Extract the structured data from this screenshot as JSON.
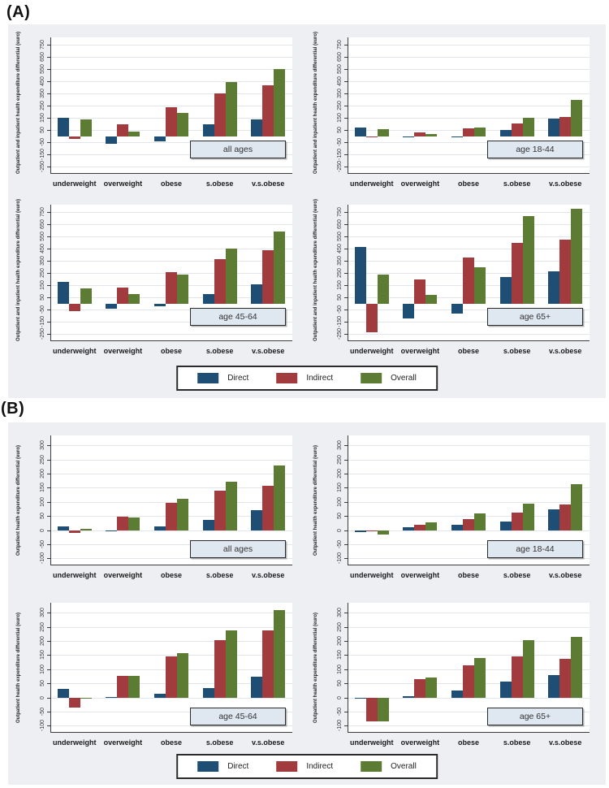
{
  "panel_labels": {
    "a": "(A)",
    "b": "(B)"
  },
  "legend": {
    "items": [
      {
        "label": "Direct",
        "color_key": "direct"
      },
      {
        "label": "Indirect",
        "color_key": "indirect"
      },
      {
        "label": "Overall",
        "color_key": "overall"
      }
    ],
    "position": "bottom-center"
  },
  "colors": {
    "direct": "#1f4e74",
    "indirect": "#a23b3e",
    "overall": "#5d7c33",
    "panel_bg": "#edeff3",
    "plot_bg": "#ffffff",
    "gridline": "#e2e5ea",
    "axis": "#3c3c3c",
    "age_box_bg": "#dfe7f0",
    "age_box_border": "#2b2b2b",
    "legend_border": "#2b2b2b"
  },
  "chart_data": [
    {
      "type": "bar",
      "panel": "A",
      "title": "all ages",
      "ylabel": "Outpatient and inpatient health expenditure differential (euro)",
      "categories": [
        "underweight",
        "overweight",
        "obese",
        "s.obese",
        "v.s.obese"
      ],
      "series": [
        {
          "name": "Direct",
          "values": [
            150,
            -60,
            -40,
            95,
            135
          ]
        },
        {
          "name": "Indirect",
          "values": [
            -20,
            100,
            240,
            350,
            415
          ]
        },
        {
          "name": "Overall",
          "values": [
            140,
            40,
            190,
            445,
            550
          ]
        }
      ],
      "ylim": [
        -310,
        810
      ],
      "yticks": [
        -250,
        -150,
        -50,
        50,
        150,
        250,
        350,
        450,
        550,
        650,
        750
      ],
      "grid": true,
      "legend_position": "bottom"
    },
    {
      "type": "bar",
      "panel": "A",
      "title": "age 18-44",
      "ylabel": "Outpatient and inpatient health expenditure differential (euro)",
      "categories": [
        "underweight",
        "overweight",
        "obese",
        "s.obese",
        "v.s.obese"
      ],
      "series": [
        {
          "name": "Direct",
          "values": [
            70,
            -12,
            -5,
            50,
            145
          ]
        },
        {
          "name": "Indirect",
          "values": [
            -10,
            30,
            65,
            105,
            155
          ]
        },
        {
          "name": "Overall",
          "values": [
            60,
            20,
            70,
            150,
            300
          ]
        }
      ],
      "ylim": [
        -310,
        810
      ],
      "yticks": [
        -250,
        -150,
        -50,
        50,
        150,
        250,
        350,
        450,
        550,
        650,
        750
      ],
      "grid": true,
      "legend_position": "bottom"
    },
    {
      "type": "bar",
      "panel": "A",
      "title": "age 45-64",
      "ylabel": "Outpatient and inpatient health expenditure differential (euro)",
      "categories": [
        "underweight",
        "overweight",
        "obese",
        "s.obese",
        "v.s.obese"
      ],
      "series": [
        {
          "name": "Direct",
          "values": [
            175,
            -45,
            -20,
            80,
            155
          ]
        },
        {
          "name": "Indirect",
          "values": [
            -60,
            130,
            255,
            365,
            440
          ]
        },
        {
          "name": "Overall",
          "values": [
            125,
            80,
            235,
            450,
            590
          ]
        }
      ],
      "ylim": [
        -310,
        810
      ],
      "yticks": [
        -250,
        -150,
        -50,
        50,
        150,
        250,
        350,
        450,
        550,
        650,
        750
      ],
      "grid": true,
      "legend_position": "bottom"
    },
    {
      "type": "bar",
      "panel": "A",
      "title": "age 65+",
      "ylabel": "Outpatient and inpatient health expenditure differential (euro)",
      "categories": [
        "underweight",
        "overweight",
        "obese",
        "s.obese",
        "v.s.obese"
      ],
      "series": [
        {
          "name": "Direct",
          "values": [
            465,
            -125,
            -80,
            215,
            265
          ]
        },
        {
          "name": "Indirect",
          "values": [
            -235,
            200,
            380,
            500,
            525
          ]
        },
        {
          "name": "Overall",
          "values": [
            235,
            70,
            300,
            720,
            780
          ]
        }
      ],
      "ylim": [
        -310,
        810
      ],
      "yticks": [
        -250,
        -150,
        -50,
        50,
        150,
        250,
        350,
        450,
        550,
        650,
        750
      ],
      "grid": true,
      "legend_position": "bottom"
    },
    {
      "type": "bar",
      "panel": "B",
      "title": "all ages",
      "ylabel": "Outpatient health expenditure differential (euro)",
      "categories": [
        "underweight",
        "overweight",
        "obese",
        "s.obese",
        "v.s.obese"
      ],
      "series": [
        {
          "name": "Direct",
          "values": [
            12,
            -2,
            12,
            35,
            70
          ]
        },
        {
          "name": "Indirect",
          "values": [
            -10,
            47,
            97,
            140,
            158
          ]
        },
        {
          "name": "Overall",
          "values": [
            5,
            45,
            110,
            172,
            228
          ]
        }
      ],
      "ylim": [
        -125,
        335
      ],
      "yticks": [
        -100,
        -50,
        0,
        50,
        100,
        150,
        200,
        250,
        300
      ],
      "grid": true,
      "legend_position": "bottom"
    },
    {
      "type": "bar",
      "panel": "B",
      "title": "age 18-44",
      "ylabel": "Outpatient health expenditure differential (euro)",
      "categories": [
        "underweight",
        "overweight",
        "obese",
        "s.obese",
        "v.s.obese"
      ],
      "series": [
        {
          "name": "Direct",
          "values": [
            -8,
            10,
            18,
            30,
            73
          ]
        },
        {
          "name": "Indirect",
          "values": [
            -5,
            18,
            38,
            63,
            90
          ]
        },
        {
          "name": "Overall",
          "values": [
            -15,
            28,
            58,
            93,
            163
          ]
        }
      ],
      "ylim": [
        -125,
        335
      ],
      "yticks": [
        -100,
        -50,
        0,
        50,
        100,
        150,
        200,
        250,
        300
      ],
      "grid": true,
      "legend_position": "bottom"
    },
    {
      "type": "bar",
      "panel": "B",
      "title": "age 45-64",
      "ylabel": "Outpatient health expenditure differential (euro)",
      "categories": [
        "underweight",
        "overweight",
        "obese",
        "s.obese",
        "v.s.obese"
      ],
      "series": [
        {
          "name": "Direct",
          "values": [
            30,
            2,
            14,
            33,
            74
          ]
        },
        {
          "name": "Indirect",
          "values": [
            -35,
            75,
            144,
            204,
            236
          ]
        },
        {
          "name": "Overall",
          "values": [
            -3,
            77,
            158,
            238,
            310
          ]
        }
      ],
      "ylim": [
        -125,
        335
      ],
      "yticks": [
        -100,
        -50,
        0,
        50,
        100,
        150,
        200,
        250,
        300
      ],
      "grid": true,
      "legend_position": "bottom"
    },
    {
      "type": "bar",
      "panel": "B",
      "title": "age 65+",
      "ylabel": "Outpatient health expenditure differential (euro)",
      "categories": [
        "underweight",
        "overweight",
        "obese",
        "s.obese",
        "v.s.obese"
      ],
      "series": [
        {
          "name": "Direct",
          "values": [
            -2,
            5,
            25,
            57,
            79
          ]
        },
        {
          "name": "Indirect",
          "values": [
            -85,
            65,
            115,
            146,
            138
          ]
        },
        {
          "name": "Overall",
          "values": [
            -85,
            70,
            140,
            202,
            215
          ]
        }
      ],
      "ylim": [
        -125,
        335
      ],
      "yticks": [
        -100,
        -50,
        0,
        50,
        100,
        150,
        200,
        250,
        300
      ],
      "grid": true,
      "legend_position": "bottom"
    }
  ]
}
